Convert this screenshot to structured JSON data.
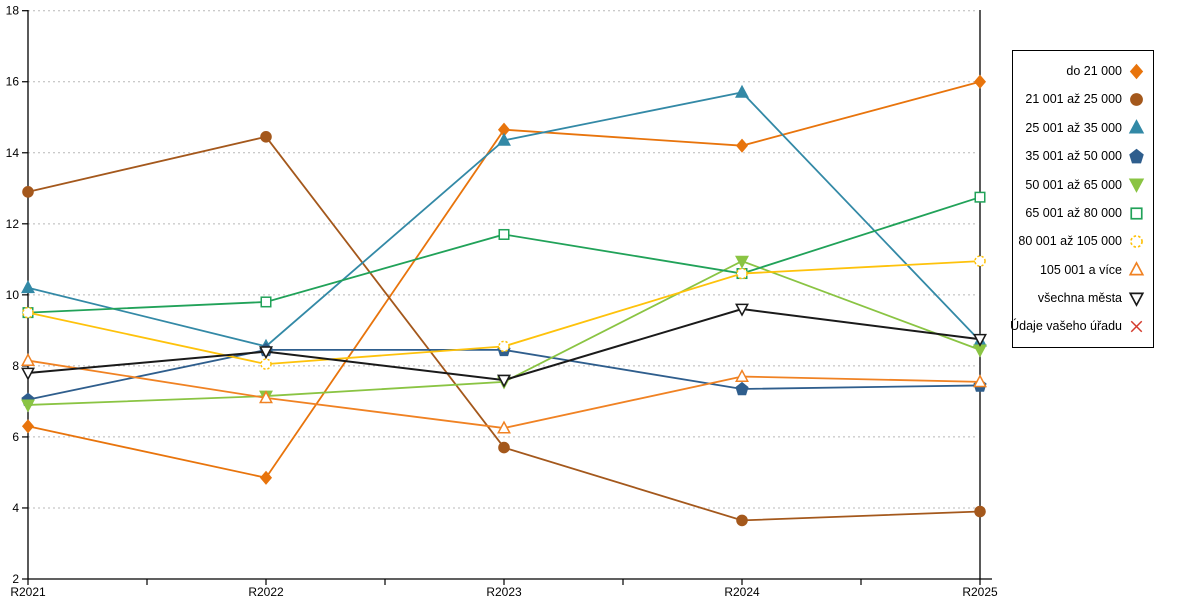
{
  "chart_data": {
    "type": "line",
    "title": "",
    "xlabel": "",
    "ylabel": "",
    "categories": [
      "R2021",
      "R2022",
      "R2023",
      "R2024",
      "R2025"
    ],
    "y_tick_labels": [
      "2",
      "4",
      "6",
      "8",
      "10",
      "12",
      "14",
      "16",
      "18"
    ],
    "ylim": [
      2,
      18
    ],
    "ytick_step": 2,
    "grid": "horizontal-dotted",
    "legend_position": "right",
    "series": [
      {
        "name": "do 21 000",
        "marker": "diamond",
        "style": "filled",
        "color": "#E8740C",
        "values": [
          6.3,
          4.85,
          14.65,
          14.2,
          16.0
        ]
      },
      {
        "name": "21 001 až 25 000",
        "marker": "circle",
        "style": "filled",
        "color": "#A4581C",
        "values": [
          12.9,
          14.45,
          5.7,
          3.65,
          3.9
        ]
      },
      {
        "name": "25 001 až 35 000",
        "marker": "triangle-up",
        "style": "filled",
        "color": "#3389A6",
        "values": [
          10.2,
          8.55,
          14.35,
          15.7,
          8.7
        ]
      },
      {
        "name": "35 001 až 50 000",
        "marker": "pentagon",
        "style": "filled",
        "color": "#2F5E8D",
        "values": [
          7.05,
          8.45,
          8.45,
          7.35,
          7.45
        ]
      },
      {
        "name": "50 001 až 65 000",
        "marker": "triangle-down",
        "style": "filled",
        "color": "#8AC443",
        "values": [
          6.9,
          7.15,
          7.55,
          10.95,
          8.45
        ]
      },
      {
        "name": "65 001 až 80 000",
        "marker": "square",
        "style": "open",
        "color": "#21A259",
        "values": [
          9.5,
          9.8,
          11.7,
          10.6,
          12.75
        ]
      },
      {
        "name": "80 001 až 105 000",
        "marker": "circle-dashed",
        "style": "open",
        "color": "#FEC20B",
        "values": [
          9.5,
          8.05,
          8.55,
          10.6,
          10.95
        ]
      },
      {
        "name": "105 001 a více",
        "marker": "triangle-up",
        "style": "open",
        "color": "#F08223",
        "values": [
          8.15,
          7.1,
          6.25,
          7.7,
          7.55
        ]
      },
      {
        "name": "všechna města",
        "marker": "triangle-down",
        "style": "open",
        "color": "#1A1A1A",
        "values": [
          7.8,
          8.4,
          7.6,
          9.6,
          8.75
        ]
      },
      {
        "name": "Údaje vašeho úřadu",
        "marker": "x",
        "style": "open",
        "color": "#D33A2C",
        "values": []
      }
    ]
  },
  "colors": {
    "axis": "#000000",
    "gridline": "#B8B8B8",
    "background": "#FFFFFF"
  }
}
